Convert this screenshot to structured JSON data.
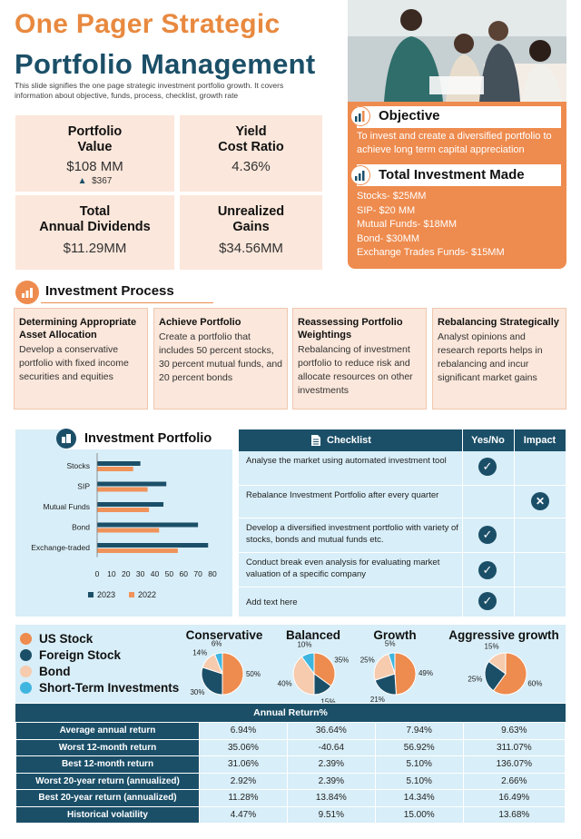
{
  "header": {
    "title_line1": "One Pager Strategic",
    "title_line2": "Portfolio Management",
    "subtitle": "This slide signifies the one page strategic investment portfolio growth. It covers information about objective, funds, process, checklist, growth rate"
  },
  "metrics": [
    {
      "label1": "Portfolio",
      "label2": "Value",
      "value": "$108 MM",
      "sub": "$367"
    },
    {
      "label1": "Yield",
      "label2": "Cost Ratio",
      "value": "4.36%"
    },
    {
      "label1": "Total",
      "label2": "Annual Dividends",
      "value": "$11.29MM"
    },
    {
      "label1": "Unrealized",
      "label2": "Gains",
      "value": "$34.56MM"
    }
  ],
  "objective": {
    "heading": "Objective",
    "text": "To invest and create a diversified portfolio to achieve long term capital appreciation"
  },
  "total_investment": {
    "heading": "Total Investment Made",
    "items": [
      "Stocks- $25MM",
      "SIP- $20 MM",
      "Mutual Funds- $18MM",
      "Bond- $30MM",
      "Exchange Trades Funds- $15MM"
    ]
  },
  "process": {
    "heading": "Investment Process",
    "steps": [
      {
        "title": "Determining Appropriate Asset Allocation",
        "text": "Develop a conservative portfolio with fixed income securities and equities"
      },
      {
        "title": "Achieve Portfolio",
        "text": "Create a portfolio that includes 50 percent stocks, 30 percent mutual funds, and 20 percent bonds"
      },
      {
        "title": "Reassessing Portfolio Weightings",
        "text": "Rebalancing of investment portfolio to reduce risk and allocate resources on other investments"
      },
      {
        "title": "Rebalancing Strategically",
        "text": " Analyst opinions and research reports helps in rebalancing and incur significant market gains"
      }
    ]
  },
  "portfolio_chart": {
    "heading": "Investment Portfolio"
  },
  "chart_data": {
    "type": "bar",
    "orientation": "horizontal",
    "categories": [
      "Stocks",
      "SIP",
      "Mutual Funds",
      "Bond",
      "Exchange-traded"
    ],
    "series": [
      {
        "name": "2023",
        "values": [
          30,
          48,
          46,
          70,
          77
        ],
        "color": "#1B4F68"
      },
      {
        "name": "2022",
        "values": [
          25,
          35,
          36,
          43,
          56
        ],
        "color": "#F0935A"
      }
    ],
    "xlim": [
      0,
      80
    ],
    "xticks": [
      "0",
      "10",
      "20",
      "30",
      "40",
      "50",
      "60",
      "70",
      "80"
    ],
    "grid": false,
    "legend": "bottom"
  },
  "checklist": {
    "col1": "Checklist",
    "col2": "Yes/No",
    "col3": "Impact",
    "rows": [
      {
        "text": "Analyse the market using automated investment tool",
        "mark": "yes"
      },
      {
        "text": "Rebalance Investment Portfolio after every quarter",
        "mark": "impact"
      },
      {
        "text": "Develop a diversified investment portfolio with variety of stocks, bonds and mutual funds etc.",
        "mark": "yes"
      },
      {
        "text": "Conduct break even analysis for evaluating market valuation of a specific company",
        "mark": "yes"
      },
      {
        "text": "Add text here",
        "mark": "yes"
      }
    ]
  },
  "asset_legend": [
    {
      "label": "US Stock",
      "color": "#EE8B4E"
    },
    {
      "label": "Foreign Stock",
      "color": "#1B4F68"
    },
    {
      "label": "Bond",
      "color": "#F6CBAE"
    },
    {
      "label": "Short-Term Investments",
      "color": "#3FB6E0"
    }
  ],
  "pies": [
    {
      "title": "Conservative",
      "slices": [
        {
          "label": "50%",
          "value": 50,
          "color": "#EE8B4E"
        },
        {
          "label": "30%",
          "value": 30,
          "color": "#1B4F68"
        },
        {
          "label": "14%",
          "value": 14,
          "color": "#F6CBAE"
        },
        {
          "label": "6%",
          "value": 6,
          "color": "#3FB6E0"
        }
      ]
    },
    {
      "title": "Balanced",
      "slices": [
        {
          "label": "35%",
          "value": 35,
          "color": "#EE8B4E"
        },
        {
          "label": "15%",
          "value": 15,
          "color": "#1B4F68"
        },
        {
          "label": "40%",
          "value": 40,
          "color": "#F6CBAE"
        },
        {
          "label": "10%",
          "value": 10,
          "color": "#3FB6E0"
        }
      ]
    },
    {
      "title": "Growth",
      "slices": [
        {
          "label": "49%",
          "value": 49,
          "color": "#EE8B4E"
        },
        {
          "label": "21%",
          "value": 21,
          "color": "#1B4F68"
        },
        {
          "label": "25%",
          "value": 25,
          "color": "#F6CBAE"
        },
        {
          "label": "5%",
          "value": 5,
          "color": "#3FB6E0"
        }
      ]
    },
    {
      "title": "Aggressive growth",
      "slices": [
        {
          "label": "60%",
          "value": 60,
          "color": "#EE8B4E"
        },
        {
          "label": "25%",
          "value": 25,
          "color": "#1B4F68"
        },
        {
          "label": "15%",
          "value": 15,
          "color": "#F6CBAE"
        }
      ]
    }
  ],
  "returns": {
    "heading": "Annual Return%",
    "rows": [
      {
        "label": "Average annual return",
        "values": [
          "6.94%",
          "36.64%",
          "7.94%",
          "9.63%"
        ]
      },
      {
        "label": "Worst 12-month return",
        "values": [
          "35.06%",
          "-40.64",
          "56.92%",
          "311.07%"
        ]
      },
      {
        "label": "Best 12-month return",
        "values": [
          "31.06%",
          "2.39%",
          "5.10%",
          "136.07%"
        ]
      },
      {
        "label": "Worst 20-year return (annualized)",
        "values": [
          "2.92%",
          "2.39%",
          "5.10%",
          "2.66%"
        ]
      },
      {
        "label": "Best 20-year return (annualized)",
        "values": [
          "11.28%",
          "13.84%",
          "14.34%",
          "16.49%"
        ]
      },
      {
        "label": "Historical volatility",
        "values": [
          "4.47%",
          "9.51%",
          "15.00%",
          "13.68%"
        ]
      }
    ]
  }
}
